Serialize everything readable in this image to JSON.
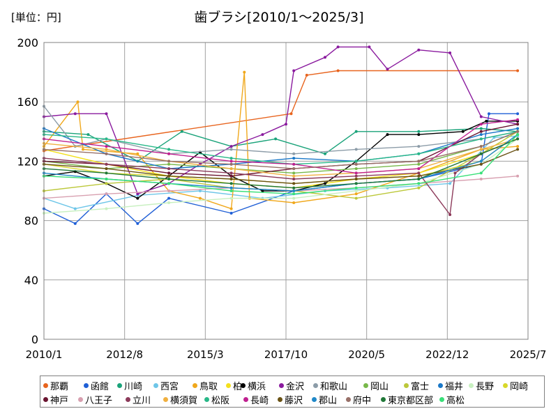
{
  "unit_label": "[単位：円]",
  "chart_data": {
    "type": "line",
    "title": "歯ブラシ[2010/1～2025/3]",
    "xlabel": "",
    "ylabel": "",
    "ylim": [
      0,
      200
    ],
    "yticks": [
      0,
      40,
      80,
      120,
      160,
      200
    ],
    "x_range": [
      "2010/1",
      "2025/7"
    ],
    "xticks": [
      "2010/1",
      "2012/8",
      "2015/3",
      "2017/10",
      "2020/5",
      "2022/12",
      "2025/7"
    ],
    "grid": true,
    "legend_position": "bottom",
    "series": [
      {
        "name": "那覇",
        "color": "#e8641e",
        "points": [
          [
            "2010/1",
            127
          ],
          [
            "2017/12",
            152
          ],
          [
            "2018/6",
            178
          ],
          [
            "2019/6",
            181
          ],
          [
            "2025/3",
            181
          ]
        ]
      },
      {
        "name": "函館",
        "color": "#1f5fd6",
        "points": [
          [
            "2010/1",
            88
          ],
          [
            "2011/1",
            78
          ],
          [
            "2012/1",
            98
          ],
          [
            "2013/1",
            78
          ],
          [
            "2014/1",
            95
          ],
          [
            "2016/1",
            85
          ],
          [
            "2018/1",
            100
          ],
          [
            "2020/1",
            105
          ],
          [
            "2022/1",
            108
          ],
          [
            "2024/1",
            118
          ],
          [
            "2024/4",
            152
          ],
          [
            "2025/3",
            152
          ]
        ]
      },
      {
        "name": "川崎",
        "color": "#1aa37a",
        "points": [
          [
            "2010/1",
            140
          ],
          [
            "2011/6",
            138
          ],
          [
            "2013/1",
            120
          ],
          [
            "2014/6",
            140
          ],
          [
            "2016/1",
            130
          ],
          [
            "2017/6",
            135
          ],
          [
            "2019/1",
            125
          ],
          [
            "2020/1",
            140
          ],
          [
            "2022/1",
            140
          ],
          [
            "2024/1",
            142
          ],
          [
            "2025/3",
            140
          ]
        ]
      },
      {
        "name": "西宮",
        "color": "#6ec6e8",
        "points": [
          [
            "2010/1",
            95
          ],
          [
            "2011/1",
            88
          ],
          [
            "2013/1",
            97
          ],
          [
            "2015/1",
            100
          ],
          [
            "2017/1",
            95
          ],
          [
            "2019/1",
            100
          ],
          [
            "2021/1",
            102
          ],
          [
            "2023/1",
            105
          ],
          [
            "2024/6",
            136
          ],
          [
            "2025/3",
            137
          ]
        ]
      },
      {
        "name": "鳥取",
        "color": "#f0a81c",
        "points": [
          [
            "2010/1",
            130
          ],
          [
            "2011/2",
            160
          ],
          [
            "2011/4",
            128
          ],
          [
            "2013/1",
            125
          ],
          [
            "2014/1",
            100
          ],
          [
            "2015/1",
            95
          ],
          [
            "2016/1",
            88
          ],
          [
            "2016/6",
            180
          ],
          [
            "2016/8",
            95
          ],
          [
            "2018/1",
            92
          ],
          [
            "2020/1",
            98
          ],
          [
            "2022/1",
            112
          ],
          [
            "2024/1",
            128
          ],
          [
            "2025/3",
            130
          ]
        ]
      },
      {
        "name": "柏",
        "color": "#f4e01c",
        "points": [
          [
            "2010/1",
            128
          ],
          [
            "2012/1",
            118
          ],
          [
            "2014/1",
            110
          ],
          [
            "2016/1",
            105
          ],
          [
            "2018/1",
            102
          ],
          [
            "2020/1",
            108
          ],
          [
            "2022/1",
            112
          ],
          [
            "2024/1",
            125
          ],
          [
            "2025/3",
            140
          ]
        ]
      },
      {
        "name": "横浜",
        "color": "#000000",
        "points": [
          [
            "2010/1",
            110
          ],
          [
            "2011/1",
            113
          ],
          [
            "2012/1",
            105
          ],
          [
            "2013/1",
            95
          ],
          [
            "2014/1",
            110
          ],
          [
            "2015/1",
            126
          ],
          [
            "2016/1",
            110
          ],
          [
            "2017/1",
            100
          ],
          [
            "2018/1",
            100
          ],
          [
            "2019/1",
            105
          ],
          [
            "2020/1",
            120
          ],
          [
            "2021/1",
            138
          ],
          [
            "2022/1",
            138
          ],
          [
            "2023/6",
            140
          ],
          [
            "2024/3",
            147
          ],
          [
            "2025/3",
            147
          ]
        ]
      },
      {
        "name": "金沢",
        "color": "#8a1a9e",
        "points": [
          [
            "2010/1",
            150
          ],
          [
            "2011/1",
            152
          ],
          [
            "2012/1",
            152
          ],
          [
            "2013/1",
            98
          ],
          [
            "2014/1",
            105
          ],
          [
            "2015/1",
            118
          ],
          [
            "2016/1",
            130
          ],
          [
            "2017/1",
            138
          ],
          [
            "2017/10",
            145
          ],
          [
            "2018/1",
            181
          ],
          [
            "2019/1",
            190
          ],
          [
            "2019/6",
            197
          ],
          [
            "2020/6",
            197
          ],
          [
            "2021/1",
            182
          ],
          [
            "2022/1",
            195
          ],
          [
            "2023/1",
            193
          ],
          [
            "2024/1",
            150
          ],
          [
            "2025/3",
            145
          ]
        ]
      },
      {
        "name": "和歌山",
        "color": "#8c9ca8",
        "points": [
          [
            "2010/1",
            157
          ],
          [
            "2011/1",
            130
          ],
          [
            "2012/1",
            135
          ],
          [
            "2014/1",
            125
          ],
          [
            "2016/1",
            128
          ],
          [
            "2018/1",
            125
          ],
          [
            "2020/1",
            128
          ],
          [
            "2022/1",
            130
          ],
          [
            "2024/1",
            135
          ],
          [
            "2025/3",
            140
          ]
        ]
      },
      {
        "name": "岡山",
        "color": "#78b84a",
        "points": [
          [
            "2010/1",
            120
          ],
          [
            "2012/1",
            115
          ],
          [
            "2014/1",
            118
          ],
          [
            "2016/1",
            115
          ],
          [
            "2018/1",
            112
          ],
          [
            "2020/1",
            115
          ],
          [
            "2022/1",
            118
          ],
          [
            "2024/1",
            130
          ],
          [
            "2025/3",
            140
          ]
        ]
      },
      {
        "name": "富士",
        "color": "#bcc83a",
        "points": [
          [
            "2010/1",
            100
          ],
          [
            "2012/1",
            105
          ],
          [
            "2014/1",
            108
          ],
          [
            "2016/1",
            102
          ],
          [
            "2018/1",
            100
          ],
          [
            "2020/1",
            95
          ],
          [
            "2022/1",
            102
          ],
          [
            "2024/1",
            125
          ],
          [
            "2025/3",
            140
          ]
        ]
      },
      {
        "name": "福井",
        "color": "#1a78c8",
        "points": [
          [
            "2010/1",
            142
          ],
          [
            "2012/1",
            125
          ],
          [
            "2014/1",
            115
          ],
          [
            "2016/1",
            118
          ],
          [
            "2018/1",
            122
          ],
          [
            "2020/1",
            120
          ],
          [
            "2022/1",
            125
          ],
          [
            "2024/1",
            138
          ],
          [
            "2025/3",
            142
          ]
        ]
      },
      {
        "name": "長野",
        "color": "#c8f0c0",
        "points": [
          [
            "2010/1",
            85
          ],
          [
            "2012/1",
            88
          ],
          [
            "2014/1",
            92
          ],
          [
            "2016/1",
            95
          ],
          [
            "2018/1",
            95
          ],
          [
            "2020/1",
            100
          ],
          [
            "2022/1",
            105
          ],
          [
            "2024/1",
            118
          ],
          [
            "2025/3",
            135
          ]
        ]
      },
      {
        "name": "岡崎",
        "color": "#d8d82a",
        "points": [
          [
            "2010/1",
            118
          ],
          [
            "2012/1",
            112
          ],
          [
            "2014/1",
            110
          ],
          [
            "2016/1",
            108
          ],
          [
            "2018/1",
            105
          ],
          [
            "2020/1",
            108
          ],
          [
            "2022/1",
            110
          ],
          [
            "2024/1",
            120
          ],
          [
            "2025/3",
            138
          ]
        ]
      },
      {
        "name": "神戸",
        "color": "#6a1430",
        "points": [
          [
            "2010/1",
            120
          ],
          [
            "2012/1",
            118
          ],
          [
            "2014/1",
            112
          ],
          [
            "2016/1",
            110
          ],
          [
            "2018/1",
            115
          ],
          [
            "2020/1",
            118
          ],
          [
            "2022/1",
            120
          ],
          [
            "2024/1",
            140
          ],
          [
            "2025/3",
            145
          ]
        ]
      },
      {
        "name": "八王子",
        "color": "#d8a0b0",
        "points": [
          [
            "2010/1",
            95
          ],
          [
            "2012/1",
            98
          ],
          [
            "2014/1",
            100
          ],
          [
            "2016/1",
            102
          ],
          [
            "2018/1",
            100
          ],
          [
            "2020/1",
            102
          ],
          [
            "2022/1",
            105
          ],
          [
            "2024/1",
            108
          ],
          [
            "2025/3",
            110
          ]
        ]
      },
      {
        "name": "立川",
        "color": "#8c3a5a",
        "points": [
          [
            "2010/1",
            122
          ],
          [
            "2012/1",
            118
          ],
          [
            "2014/1",
            115
          ],
          [
            "2016/1",
            112
          ],
          [
            "2018/1",
            108
          ],
          [
            "2020/1",
            110
          ],
          [
            "2022/1",
            112
          ],
          [
            "2023/1",
            84
          ],
          [
            "2023/3",
            112
          ],
          [
            "2024/1",
            125
          ],
          [
            "2025/3",
            135
          ]
        ]
      },
      {
        "name": "横須賀",
        "color": "#f0b040",
        "points": [
          [
            "2010/1",
            132
          ],
          [
            "2012/1",
            128
          ],
          [
            "2014/1",
            120
          ],
          [
            "2016/1",
            115
          ],
          [
            "2018/1",
            110
          ],
          [
            "2020/1",
            112
          ],
          [
            "2022/1",
            115
          ],
          [
            "2024/1",
            128
          ],
          [
            "2025/3",
            135
          ]
        ]
      },
      {
        "name": "松阪",
        "color": "#28b888",
        "points": [
          [
            "2010/1",
            138
          ],
          [
            "2012/1",
            135
          ],
          [
            "2014/1",
            128
          ],
          [
            "2016/1",
            122
          ],
          [
            "2018/1",
            118
          ],
          [
            "2020/1",
            120
          ],
          [
            "2022/1",
            125
          ],
          [
            "2024/1",
            135
          ],
          [
            "2025/3",
            140
          ]
        ]
      },
      {
        "name": "長崎",
        "color": "#c02090",
        "points": [
          [
            "2010/1",
            135
          ],
          [
            "2012/1",
            130
          ],
          [
            "2014/1",
            125
          ],
          [
            "2016/1",
            120
          ],
          [
            "2018/1",
            118
          ],
          [
            "2020/1",
            112
          ],
          [
            "2022/1",
            115
          ],
          [
            "2024/1",
            145
          ],
          [
            "2025/3",
            148
          ]
        ]
      },
      {
        "name": "藤沢",
        "color": "#6a5214",
        "points": [
          [
            "2010/1",
            118
          ],
          [
            "2012/1",
            115
          ],
          [
            "2014/1",
            110
          ],
          [
            "2016/1",
            108
          ],
          [
            "2018/1",
            105
          ],
          [
            "2020/1",
            108
          ],
          [
            "2022/1",
            110
          ],
          [
            "2024/1",
            118
          ],
          [
            "2025/3",
            128
          ]
        ]
      },
      {
        "name": "郡山",
        "color": "#2088c8",
        "points": [
          [
            "2010/1",
            112
          ],
          [
            "2012/1",
            108
          ],
          [
            "2014/1",
            105
          ],
          [
            "2016/1",
            102
          ],
          [
            "2018/1",
            100
          ],
          [
            "2020/1",
            105
          ],
          [
            "2022/1",
            108
          ],
          [
            "2024/1",
            120
          ],
          [
            "2025/3",
            138
          ]
        ]
      },
      {
        "name": "府中",
        "color": "#987068",
        "points": [
          [
            "2010/1",
            128
          ],
          [
            "2012/1",
            125
          ],
          [
            "2014/1",
            120
          ],
          [
            "2016/1",
            118
          ],
          [
            "2018/1",
            115
          ],
          [
            "2020/1",
            118
          ],
          [
            "2022/1",
            120
          ],
          [
            "2024/1",
            130
          ],
          [
            "2025/3",
            140
          ]
        ]
      },
      {
        "name": "東京都区部",
        "color": "#207838",
        "points": [
          [
            "2010/1",
            115
          ],
          [
            "2012/1",
            112
          ],
          [
            "2014/1",
            108
          ],
          [
            "2016/1",
            105
          ],
          [
            "2018/1",
            102
          ],
          [
            "2020/1",
            105
          ],
          [
            "2022/1",
            108
          ],
          [
            "2024/1",
            125
          ],
          [
            "2025/3",
            135
          ]
        ]
      },
      {
        "name": "高松",
        "color": "#38e078",
        "points": [
          [
            "2010/1",
            110
          ],
          [
            "2012/1",
            108
          ],
          [
            "2014/1",
            105
          ],
          [
            "2016/1",
            100
          ],
          [
            "2018/1",
            98
          ],
          [
            "2020/1",
            102
          ],
          [
            "2022/1",
            105
          ],
          [
            "2024/1",
            112
          ],
          [
            "2025/3",
            138
          ]
        ]
      }
    ]
  }
}
